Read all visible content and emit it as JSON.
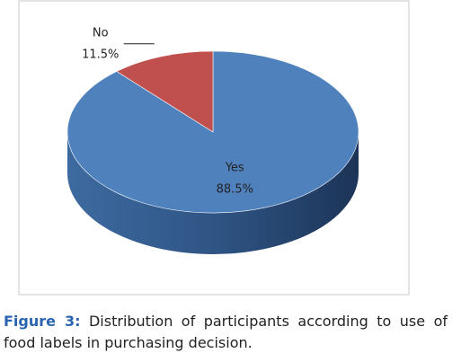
{
  "chart_data": {
    "type": "pie",
    "categories": [
      "Yes",
      "No"
    ],
    "values": [
      88.5,
      11.5
    ],
    "value_labels": [
      "88.5%",
      "11.5%"
    ],
    "colors": [
      "#4f81bd",
      "#c0504d"
    ],
    "caption_label": "Figure 3:",
    "caption": "Distribution of participants according to use of food labels in purchasing decision."
  }
}
